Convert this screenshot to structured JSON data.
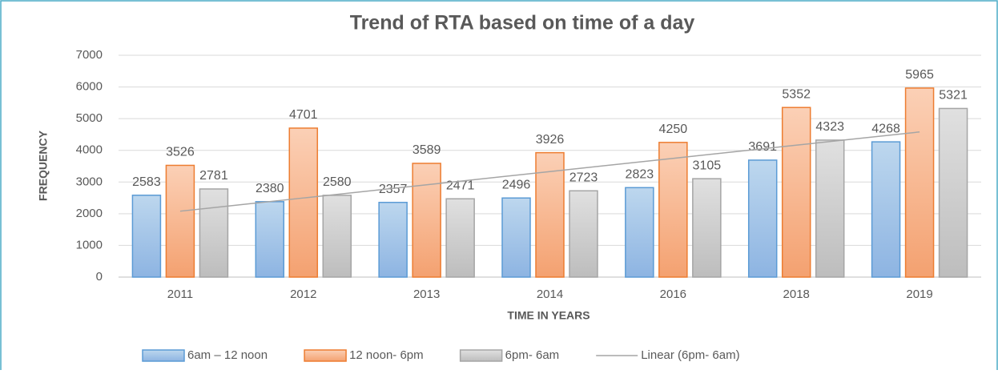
{
  "chart_data": {
    "type": "bar",
    "title": "Trend of RTA based on time of a day",
    "x_label": "TIME IN YEARS",
    "y_label": "FREQUENCY",
    "categories": [
      "2011",
      "2012",
      "2013",
      "2014",
      "2016",
      "2018",
      "2019"
    ],
    "series": [
      {
        "name": "6am – 12 noon",
        "color": "#9dc3e6",
        "border": "#5b9bd5",
        "values": [
          2583,
          2380,
          2357,
          2496,
          2823,
          3691,
          4268
        ]
      },
      {
        "name": "12 noon- 6pm",
        "color": "#f8b790",
        "border": "#ed7d31",
        "values": [
          3526,
          4701,
          3589,
          3926,
          4250,
          5352,
          5965
        ]
      },
      {
        "name": "6pm- 6am",
        "color": "#cfcfcf",
        "border": "#a5a5a5",
        "values": [
          2781,
          2580,
          2471,
          2723,
          3105,
          4323,
          5321
        ]
      },
      {
        "name": "Linear (6pm- 6am)",
        "type": "line",
        "color": "#a5a5a5",
        "values": [
          2080,
          2497,
          2913,
          3330,
          3747,
          4163,
          4580
        ]
      }
    ],
    "ylim": [
      0,
      7000
    ],
    "yticks": [
      0,
      1000,
      2000,
      3000,
      4000,
      5000,
      6000,
      7000
    ],
    "grid": true,
    "legend": "bottom"
  }
}
